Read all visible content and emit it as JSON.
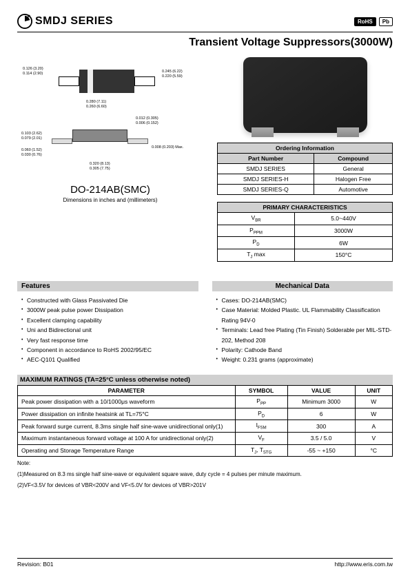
{
  "header": {
    "series": "SMDJ SERIES",
    "badge1": "RoHS",
    "badge2": "Pb"
  },
  "title": "Transient Voltage Suppressors(3000W)",
  "package": {
    "label": "DO-214AB(SMC)",
    "sublabel": "Dimensions in inches and (millimeters)",
    "dims": {
      "d1": "0.126 (3.20)",
      "d2": "0.114 (2.90)",
      "d3": "0.245 (6.22)",
      "d4": "0.220 (5.59)",
      "d5": "0.280 (7.11)",
      "d6": "0.260 (6.60)",
      "d7": "0.012 (0.305)",
      "d8": "0.006 (0.152)",
      "d9": "0.103 (2.62)",
      "d10": "0.079 (2.01)",
      "d11": "0.060 (1.52)",
      "d12": "0.030 (0.76)",
      "d13": "0.008  (0.203) Max.",
      "d14": "0.320 (8.13)",
      "d15": "0.305 (7.75)"
    }
  },
  "ordering": {
    "title": "Ordering Information",
    "cols": [
      "Part Number",
      "Compound"
    ],
    "rows": [
      [
        "SMDJ SERIES",
        "General"
      ],
      [
        "SMDJ SERIES-H",
        "Halogen Free"
      ],
      [
        "SMDJ SERIES-Q",
        "Automotive"
      ]
    ]
  },
  "primary": {
    "title": "PRIMARY CHARACTERISTICS",
    "rows": [
      [
        "V<sub>BR</sub>",
        "5.0~440V"
      ],
      [
        "P<sub>PPM</sub>",
        "3000W"
      ],
      [
        "P<sub>D</sub>",
        "6W"
      ],
      [
        "T<sub>J</sub> max",
        "150°C"
      ]
    ]
  },
  "features": {
    "title": "Features",
    "items": [
      "Constructed with Glass Passivated Die",
      "3000W peak pulse power Dissipation",
      "Excellent clamping capability",
      "Uni and Bidirectional unit",
      "Very fast response time",
      "Component in accordance to RoHS 2002/95/EC",
      "AEC-Q101 Qualified"
    ]
  },
  "mechanical": {
    "title": "Mechanical Data",
    "items": [
      "Cases: DO-214AB(SMC)",
      "Case Material: Molded Plastic. UL Flammability Classification Rating 94V-0",
      "Terminals: Lead free Plating (Tin Finish) Solderable per MIL-STD-202, Method 208",
      "Polarity: Cathode Band",
      "Weight: 0.231 grams (approximate)"
    ]
  },
  "ratings": {
    "title": "MAXIMUM RATINGS (TA=25°C unless otherwise noted)",
    "cols": [
      "PARAMETER",
      "SYMBOL",
      "VALUE",
      "UNIT"
    ],
    "rows": [
      [
        "Peak power dissipation with a 10/1000μs waveform",
        "P<sub>PP</sub>",
        "Minimum 3000",
        "W"
      ],
      [
        "Power dissipation on infinite heatsink at TL=75°C",
        "P<sub>D</sub>",
        "6",
        "W"
      ],
      [
        "Peak forward surge current, 8.3ms single half sine-wave unidirectional only(1)",
        "I<sub>FSM</sub>",
        "300",
        "A"
      ],
      [
        "Maximum instantaneous forward voltage at 100 A for unidirectional only(2)",
        "V<sub>F</sub>",
        "3.5 / 5.0",
        "V"
      ],
      [
        "Operating and Storage Temperature Range",
        "T<sub>J</sub>, T<sub>STG</sub>",
        "-55 ~ +150",
        "°C"
      ]
    ]
  },
  "notes": {
    "label": "Note:",
    "n1": "(1)Measured on 8.3 ms single half sine-wave or equivalent square wave, duty cycle = 4 pulses per minute maximum.",
    "n2": "(2)VF<3.5V for devices of VBR<200V and VF<5.0V for devices of VBR>201V"
  },
  "footer": {
    "rev": "Revision: B01",
    "url": "http://www.eris.com.tw"
  }
}
